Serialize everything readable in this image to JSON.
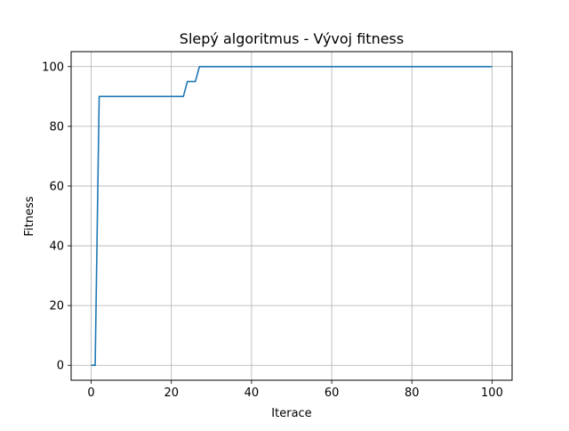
{
  "chart_data": {
    "type": "line",
    "title": "Slepý algoritmus - Vývoj fitness",
    "xlabel": "Iterace",
    "ylabel": "Fitness",
    "xlim": [
      -5,
      105
    ],
    "ylim": [
      -5,
      105
    ],
    "grid": true,
    "x_ticks": [
      0,
      20,
      40,
      60,
      80,
      100
    ],
    "y_ticks": [
      0,
      20,
      40,
      60,
      80,
      100
    ],
    "x_tick_labels": [
      "0",
      "20",
      "40",
      "60",
      "80",
      "100"
    ],
    "y_tick_labels": [
      "0",
      "20",
      "40",
      "60",
      "80",
      "100"
    ],
    "series": [
      {
        "color": "#1f77b4",
        "x": [
          0,
          1,
          2,
          3,
          22,
          23,
          24,
          25,
          26,
          27,
          28,
          100
        ],
        "y": [
          0,
          0,
          90,
          90,
          90,
          90,
          95,
          95,
          95,
          100,
          100,
          100
        ]
      }
    ]
  }
}
